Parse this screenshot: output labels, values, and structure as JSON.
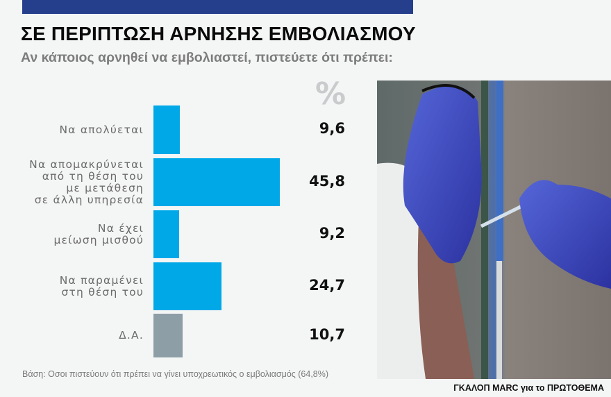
{
  "header": {
    "title": "ΣΕ ΠΕΡΙΠΤΩΣΗ ΑΡΝΗΣΗΣ ΕΜΒΟΛΙΑΣΜΟΥ",
    "subtitle": "Αν κάποιος αρνηθεί να εμβολιαστεί, πιστεύετε ότι πρέπει:",
    "unit_symbol": "%"
  },
  "colors": {
    "topbar": "#253f8c",
    "bar_primary": "#00a8e8",
    "bar_neutral": "#8e9ea6",
    "background": "#f4f5f5"
  },
  "rows": [
    {
      "label_lines": [
        "Να απολύεται"
      ],
      "value": "9,6",
      "color": "#00a8e8"
    },
    {
      "label_lines": [
        "Να απομακρύνεται",
        "από τη θέση του",
        "με μετάθεση",
        "σε άλλη υπηρεσία"
      ],
      "value": "45,8",
      "color": "#00a8e8"
    },
    {
      "label_lines": [
        "Να έχει",
        "μείωση μισθού"
      ],
      "value": "9,2",
      "color": "#00a8e8"
    },
    {
      "label_lines": [
        "Να παραμένει",
        "στη θέση του"
      ],
      "value": "24,7",
      "color": "#00a8e8"
    },
    {
      "label_lines": [
        "Δ.Α."
      ],
      "value": "10,7",
      "color": "#8e9ea6"
    }
  ],
  "footer": {
    "note": "Βάση: Οσοι πιστεύουν ότι πρέπει να γίνει υποχρεωτικός ο εμβολιασμός (64,8%)",
    "source": "ΓΚΑΛΟΠ MARC για το ΠΡΩΤΟΘΕΜΑ"
  },
  "photo": {
    "subject": "gloved-hands-vaccine-injection-photo"
  },
  "chart_data": {
    "type": "bar",
    "orientation": "horizontal",
    "title": "ΣΕ ΠΕΡΙΠΤΩΣΗ ΑΡΝΗΣΗΣ ΕΜΒΟΛΙΑΣΜΟΥ",
    "subtitle": "Αν κάποιος αρνηθεί να εμβολιαστεί, πιστεύετε ότι πρέπει:",
    "categories": [
      "Να απολύεται",
      "Να απομακρύνεται από τη θέση του με μετάθεση σε άλλη υπηρεσία",
      "Να έχει μείωση μισθού",
      "Να παραμένει στη θέση του",
      "Δ.Α."
    ],
    "values": [
      9.6,
      45.8,
      9.2,
      24.7,
      10.7
    ],
    "xlabel": "%",
    "ylabel": "",
    "grid": false,
    "legend": "none",
    "annotations": [
      "Βάση: Οσοι πιστεύουν ότι πρέπει να γίνει υποχρεωτικός ο εμβολιασμός (64,8%)",
      "ΓΚΑΛΟΠ MARC για το ΠΡΩΤΟΘΕΜΑ"
    ]
  }
}
